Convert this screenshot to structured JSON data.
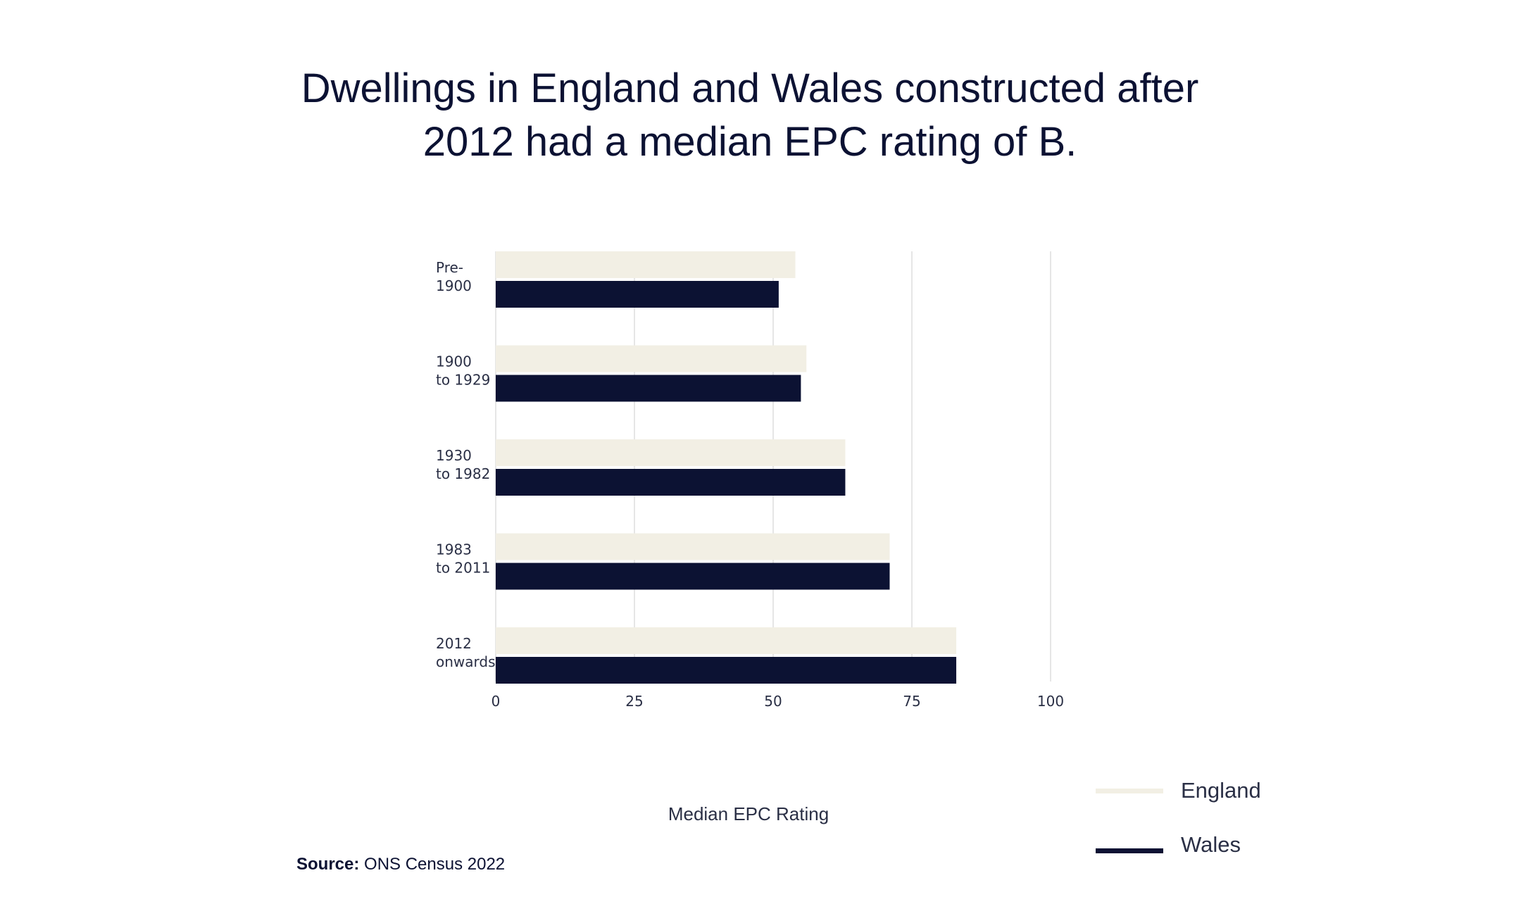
{
  "title_lines": [
    "Dwellings in England and Wales constructed after",
    "2012 had a median EPC rating of B."
  ],
  "source": {
    "label": "Source:",
    "text": "ONS Census 2022"
  },
  "colors": {
    "England": "#f2efe4",
    "Wales": "#0c1233",
    "grid": "#e6e6e6"
  },
  "chart_data": {
    "type": "bar",
    "orientation": "horizontal",
    "title": "Dwellings in England and Wales constructed after 2012 had a median EPC rating of B.",
    "xlabel": "Median EPC Rating",
    "ylabel": "",
    "xlim": [
      0,
      100
    ],
    "xticks": [
      0,
      25,
      50,
      75,
      100
    ],
    "categories": [
      [
        "Pre-",
        "1900"
      ],
      [
        "1900",
        "to 1929"
      ],
      [
        "1930",
        "to 1982"
      ],
      [
        "1983",
        "to 2011"
      ],
      [
        "2012",
        "onwards"
      ]
    ],
    "series": [
      {
        "name": "England",
        "values": [
          54,
          56,
          63,
          71,
          83
        ]
      },
      {
        "name": "Wales",
        "values": [
          51,
          55,
          63,
          71,
          83
        ]
      }
    ],
    "legend_position": "bottom-right"
  }
}
